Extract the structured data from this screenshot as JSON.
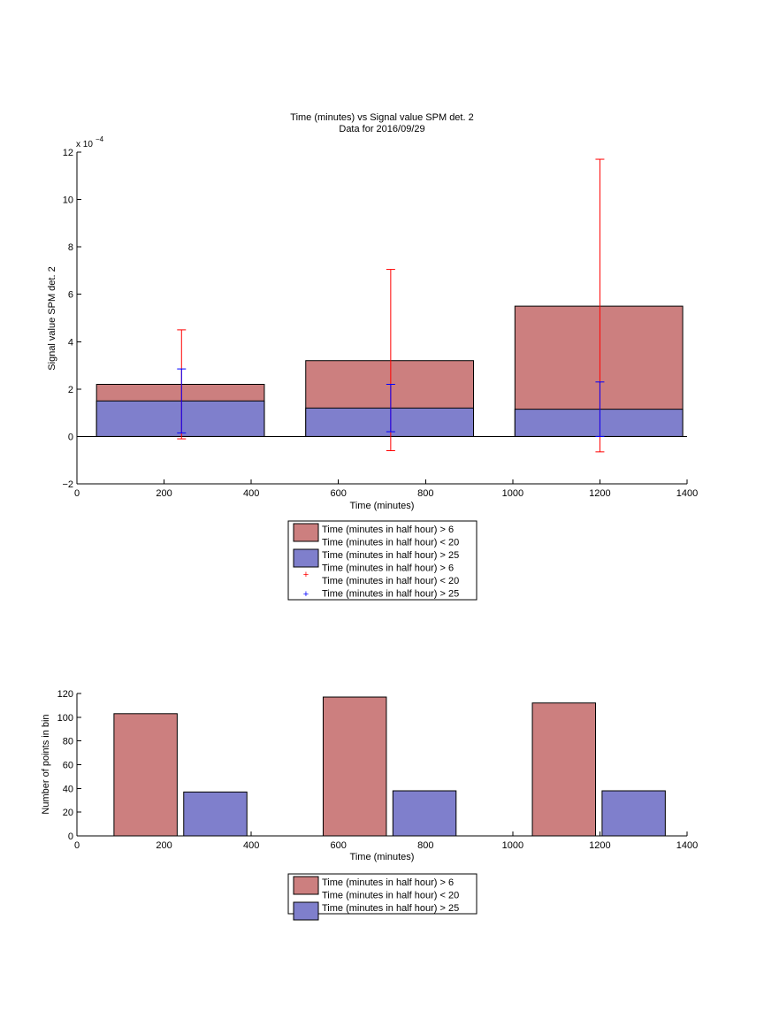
{
  "colors": {
    "red_fill": "#cc7f7f",
    "blue_fill": "#7f7fcc",
    "red_err": "#ff0000",
    "blue_err": "#0000ff"
  },
  "chart_data": [
    {
      "type": "bar",
      "title": "Time (minutes) vs Signal value SPM det. 2",
      "subtitle": "Data for 2016/09/29",
      "xlabel": "Time (minutes)",
      "ylabel": "Signal value SPM det. 2",
      "y_exponent_label": "x 10",
      "y_exponent_power": "−4",
      "xlim": [
        0,
        1400
      ],
      "ylim": [
        -2,
        12
      ],
      "y_scale_note": "values in units of 1e-4",
      "xticks": [
        "0",
        "200",
        "400",
        "600",
        "800",
        "1000",
        "1200",
        "1400"
      ],
      "yticks": [
        "−2",
        "0",
        "2",
        "4",
        "6",
        "8",
        "10",
        "12"
      ],
      "grid": false,
      "bars": [
        {
          "series": 0,
          "x0": 45,
          "x1": 430,
          "value": 2.2
        },
        {
          "series": 0,
          "x0": 525,
          "x1": 910,
          "value": 3.2
        },
        {
          "series": 0,
          "x0": 1005,
          "x1": 1390,
          "value": 5.5
        },
        {
          "series": 1,
          "x0": 45,
          "x1": 430,
          "value": 1.5
        },
        {
          "series": 1,
          "x0": 525,
          "x1": 910,
          "value": 1.2
        },
        {
          "series": 1,
          "x0": 1005,
          "x1": 1390,
          "value": 1.15
        }
      ],
      "errorbars": [
        {
          "series": 0,
          "x": 240,
          "lo": -0.1,
          "hi": 4.5
        },
        {
          "series": 0,
          "x": 720,
          "lo": -0.6,
          "hi": 7.05
        },
        {
          "series": 0,
          "x": 1200,
          "lo": -0.65,
          "hi": 11.7
        },
        {
          "series": 1,
          "x": 240,
          "lo": 0.15,
          "hi": 2.85
        },
        {
          "series": 1,
          "x": 720,
          "lo": 0.2,
          "hi": 2.2
        },
        {
          "series": 1,
          "x": 1200,
          "lo": 0.0,
          "hi": 2.3
        }
      ],
      "legend": [
        {
          "kind": "patch",
          "color": "red",
          "lines": [
            "Time (minutes in half hour) > 6",
            "Time (minutes in half hour) < 20"
          ]
        },
        {
          "kind": "patch",
          "color": "blue",
          "lines": [
            "Time (minutes in half hour) > 25"
          ]
        },
        {
          "kind": "marker",
          "color": "red",
          "lines": [
            "Time (minutes in half hour) > 6",
            "Time (minutes in half hour) < 20"
          ]
        },
        {
          "kind": "marker",
          "color": "blue",
          "lines": [
            "Time (minutes in half hour) > 25"
          ]
        }
      ],
      "legend_position": "below"
    },
    {
      "type": "bar",
      "xlabel": "Time (minutes)",
      "ylabel": "Number of points in bin",
      "xlim": [
        0,
        1400
      ],
      "ylim": [
        0,
        120
      ],
      "xticks": [
        "0",
        "200",
        "400",
        "600",
        "800",
        "1000",
        "1200",
        "1400"
      ],
      "yticks": [
        "0",
        "20",
        "40",
        "60",
        "80",
        "100",
        "120"
      ],
      "grid": false,
      "bars": [
        {
          "series": 0,
          "x0": 85,
          "x1": 230,
          "value": 103
        },
        {
          "series": 1,
          "x0": 245,
          "x1": 390,
          "value": 37
        },
        {
          "series": 0,
          "x0": 565,
          "x1": 710,
          "value": 117
        },
        {
          "series": 1,
          "x0": 725,
          "x1": 870,
          "value": 38
        },
        {
          "series": 0,
          "x0": 1045,
          "x1": 1190,
          "value": 112
        },
        {
          "series": 1,
          "x0": 1205,
          "x1": 1350,
          "value": 38
        }
      ],
      "legend": [
        {
          "kind": "patch",
          "color": "red",
          "lines": [
            "Time (minutes in half hour) > 6",
            "Time (minutes in half hour) < 20"
          ]
        },
        {
          "kind": "patch",
          "color": "blue",
          "lines": [
            "Time (minutes in half hour) > 25"
          ]
        }
      ],
      "legend_position": "below"
    }
  ]
}
